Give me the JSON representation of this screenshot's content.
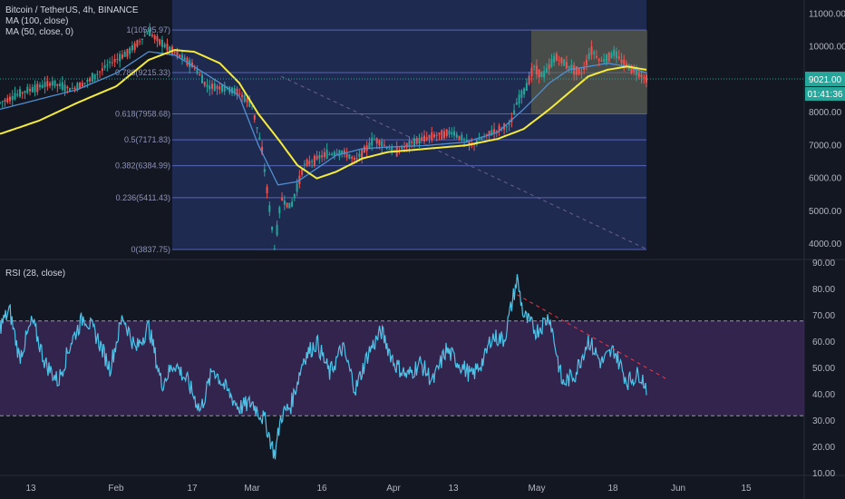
{
  "header": {
    "symbol_line": "Bitcoin / TetherUS, 4h, BINANCE",
    "ma100_label": "MA (100, close)",
    "ma50_label": "MA (50, close, 0)"
  },
  "rsi_panel": {
    "label": "RSI (28, close)"
  },
  "price_tag": {
    "value": "9021.00",
    "countdown": "01:41:36"
  },
  "colors": {
    "background": "#131722",
    "fib_fill": "#2a3a78",
    "fib_line": "#5c6bc0",
    "box_fill": "#6b6a45",
    "ma100": "#f5eb3b",
    "ma50": "#4e8fd1",
    "rsi": "#4dc3e8",
    "rsi_band": "#3d2a5c",
    "candle_up": "#26a69a",
    "candle_down": "#ef5350",
    "price_tag": "#26a69a",
    "trend_dashed": "#f23645"
  },
  "chart_data": [
    {
      "type": "candlestick",
      "title": "Bitcoin / TetherUS, 4h, BINANCE",
      "x_tick_labels": [
        "13",
        "Feb",
        "17",
        "Mar",
        "16",
        "Apr",
        "13",
        "May",
        "18",
        "Jun",
        "15"
      ],
      "y_tick_labels": [
        "11000.00",
        "10000.00",
        "9000.00",
        "8000.00",
        "7000.00",
        "6000.00",
        "5000.00",
        "4000.00"
      ],
      "ylim": [
        3700,
        11200
      ],
      "fib_levels": [
        {
          "label": "1(10505.97)",
          "value": 10505.97
        },
        {
          "label": "0.786(9215.33)",
          "value": 9215.33
        },
        {
          "label": "0.618(7958.68)",
          "value": 7958.68
        },
        {
          "label": "0.5(7171.83)",
          "value": 7171.83
        },
        {
          "label": "0.382(6384.99)",
          "value": 6384.99
        },
        {
          "label": "0.236(5411.43)",
          "value": 5411.43
        },
        {
          "label": "0(3837.75)",
          "value": 3837.75
        }
      ],
      "consolidation_box": {
        "top": 10500,
        "bottom": 7950
      },
      "last_price": 9021.0,
      "price_path": [
        [
          0,
          8300
        ],
        [
          0.04,
          8650
        ],
        [
          0.08,
          8900
        ],
        [
          0.11,
          8700
        ],
        [
          0.14,
          9000
        ],
        [
          0.17,
          9500
        ],
        [
          0.2,
          9850
        ],
        [
          0.23,
          10450
        ],
        [
          0.25,
          10100
        ],
        [
          0.28,
          9700
        ],
        [
          0.3,
          9400
        ],
        [
          0.32,
          8800
        ],
        [
          0.35,
          8750
        ],
        [
          0.37,
          8600
        ],
        [
          0.39,
          8200
        ],
        [
          0.405,
          6900
        ],
        [
          0.42,
          4600
        ],
        [
          0.425,
          3850
        ],
        [
          0.435,
          5400
        ],
        [
          0.45,
          5100
        ],
        [
          0.47,
          6400
        ],
        [
          0.5,
          6700
        ],
        [
          0.53,
          6800
        ],
        [
          0.55,
          6550
        ],
        [
          0.58,
          7200
        ],
        [
          0.61,
          6800
        ],
        [
          0.64,
          7100
        ],
        [
          0.67,
          7300
        ],
        [
          0.7,
          7400
        ],
        [
          0.73,
          7000
        ],
        [
          0.76,
          7400
        ],
        [
          0.79,
          7650
        ],
        [
          0.8,
          8300
        ],
        [
          0.815,
          8800
        ],
        [
          0.825,
          9400
        ],
        [
          0.84,
          9100
        ],
        [
          0.86,
          9700
        ],
        [
          0.88,
          9400
        ],
        [
          0.9,
          9200
        ],
        [
          0.915,
          9900
        ],
        [
          0.93,
          9550
        ],
        [
          0.95,
          9800
        ],
        [
          0.965,
          9500
        ],
        [
          0.98,
          9300
        ],
        [
          1,
          9021
        ]
      ],
      "ma100_path": [
        [
          0,
          7350
        ],
        [
          0.06,
          7750
        ],
        [
          0.12,
          8300
        ],
        [
          0.18,
          8800
        ],
        [
          0.23,
          9600
        ],
        [
          0.27,
          9900
        ],
        [
          0.3,
          9850
        ],
        [
          0.34,
          9500
        ],
        [
          0.37,
          8900
        ],
        [
          0.4,
          7950
        ],
        [
          0.43,
          7200
        ],
        [
          0.46,
          6400
        ],
        [
          0.49,
          6000
        ],
        [
          0.52,
          6200
        ],
        [
          0.56,
          6600
        ],
        [
          0.6,
          6800
        ],
        [
          0.66,
          6900
        ],
        [
          0.72,
          7000
        ],
        [
          0.77,
          7200
        ],
        [
          0.81,
          7500
        ],
        [
          0.85,
          8100
        ],
        [
          0.88,
          8600
        ],
        [
          0.91,
          9100
        ],
        [
          0.94,
          9300
        ],
        [
          0.97,
          9400
        ],
        [
          1,
          9300
        ]
      ],
      "ma50_path": [
        [
          0,
          8100
        ],
        [
          0.06,
          8400
        ],
        [
          0.12,
          8700
        ],
        [
          0.18,
          9200
        ],
        [
          0.23,
          9850
        ],
        [
          0.27,
          9750
        ],
        [
          0.3,
          9400
        ],
        [
          0.34,
          8900
        ],
        [
          0.37,
          8500
        ],
        [
          0.4,
          7000
        ],
        [
          0.43,
          5800
        ],
        [
          0.46,
          5900
        ],
        [
          0.49,
          6300
        ],
        [
          0.52,
          6700
        ],
        [
          0.56,
          6900
        ],
        [
          0.6,
          6950
        ],
        [
          0.66,
          7000
        ],
        [
          0.72,
          7100
        ],
        [
          0.77,
          7400
        ],
        [
          0.81,
          8100
        ],
        [
          0.85,
          8900
        ],
        [
          0.88,
          9300
        ],
        [
          0.91,
          9400
        ],
        [
          0.94,
          9500
        ],
        [
          0.97,
          9400
        ],
        [
          1,
          9200
        ]
      ]
    },
    {
      "type": "line",
      "title": "RSI (28, close)",
      "y_tick_labels": [
        "90.00",
        "80.00",
        "70.00",
        "60.00",
        "50.00",
        "40.00",
        "30.00",
        "20.00",
        "10.00"
      ],
      "ylim": [
        10,
        90
      ],
      "bands": {
        "upper": 68,
        "lower": 32
      },
      "series": [
        {
          "values": [
            [
              0,
              66
            ],
            [
              0.015,
              72
            ],
            [
              0.03,
              54
            ],
            [
              0.05,
              68
            ],
            [
              0.07,
              52
            ],
            [
              0.09,
              45
            ],
            [
              0.11,
              60
            ],
            [
              0.13,
              70
            ],
            [
              0.15,
              62
            ],
            [
              0.17,
              50
            ],
            [
              0.19,
              70
            ],
            [
              0.21,
              57
            ],
            [
              0.23,
              66
            ],
            [
              0.25,
              44
            ],
            [
              0.27,
              52
            ],
            [
              0.29,
              45
            ],
            [
              0.31,
              34
            ],
            [
              0.33,
              50
            ],
            [
              0.35,
              42
            ],
            [
              0.37,
              35
            ],
            [
              0.39,
              37
            ],
            [
              0.41,
              30
            ],
            [
              0.425,
              17
            ],
            [
              0.435,
              32
            ],
            [
              0.45,
              36
            ],
            [
              0.47,
              54
            ],
            [
              0.49,
              60
            ],
            [
              0.51,
              48
            ],
            [
              0.53,
              58
            ],
            [
              0.55,
              42
            ],
            [
              0.57,
              56
            ],
            [
              0.59,
              64
            ],
            [
              0.61,
              52
            ],
            [
              0.63,
              47
            ],
            [
              0.65,
              52
            ],
            [
              0.67,
              45
            ],
            [
              0.69,
              57
            ],
            [
              0.71,
              52
            ],
            [
              0.73,
              47
            ],
            [
              0.75,
              54
            ],
            [
              0.76,
              62
            ],
            [
              0.78,
              61
            ],
            [
              0.8,
              84
            ],
            [
              0.81,
              70
            ],
            [
              0.83,
              64
            ],
            [
              0.85,
              70
            ],
            [
              0.87,
              44
            ],
            [
              0.89,
              48
            ],
            [
              0.91,
              61
            ],
            [
              0.93,
              52
            ],
            [
              0.95,
              57
            ],
            [
              0.97,
              45
            ],
            [
              0.99,
              48
            ],
            [
              1,
              43
            ]
          ]
        }
      ]
    }
  ]
}
